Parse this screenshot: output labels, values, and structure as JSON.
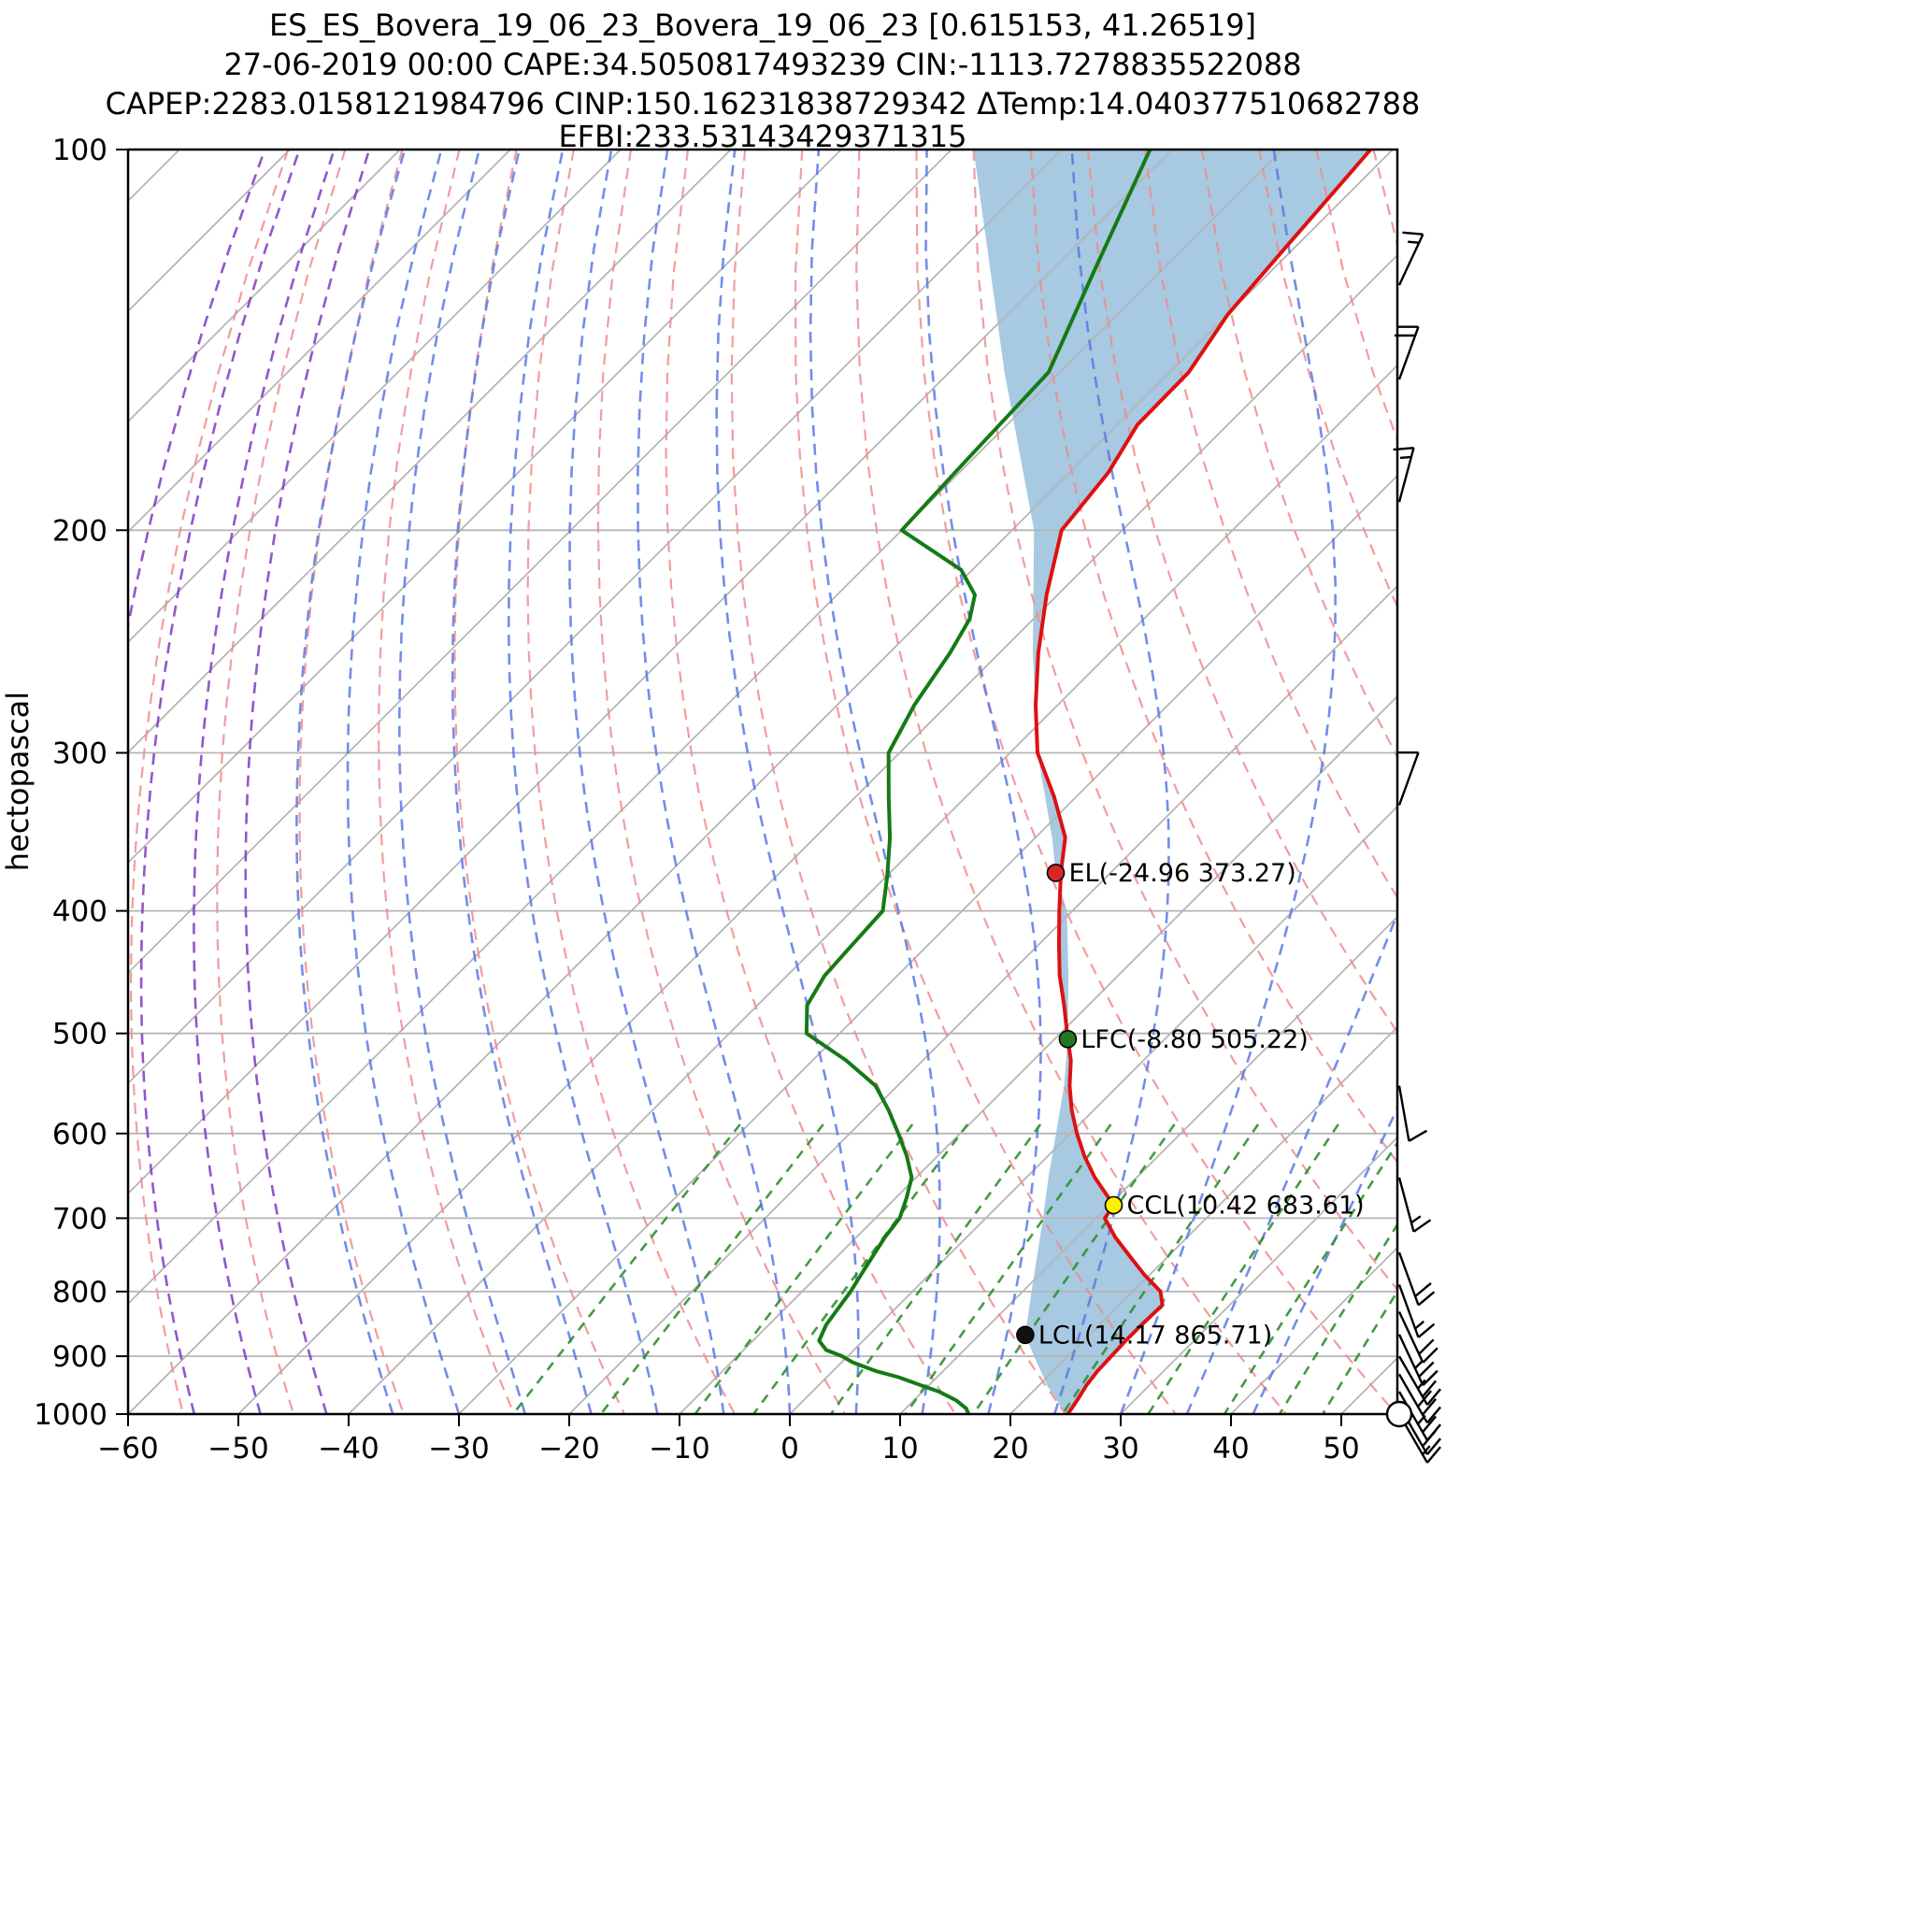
{
  "title": {
    "line1": "ES_ES_Bovera_19_06_23_Bovera_19_06_23 [0.615153, 41.26519]",
    "line2": "27-06-2019 00:00 CAPE:34.5050817493239 CIN:-1113.7278835522088",
    "line3": "CAPEP:2283.0158121984796 CINP:150.16231838729342 ΔTemp:14.040377510682788",
    "line4": "EFBI:233.53143429371315"
  },
  "axes": {
    "y_label": "hectopascal",
    "x_ticks": [
      -60,
      -50,
      -40,
      -30,
      -20,
      -10,
      0,
      10,
      20,
      30,
      40,
      50
    ],
    "y_ticks": [
      100,
      200,
      300,
      400,
      500,
      600,
      700,
      800,
      900,
      1000
    ],
    "x_range_degC": [
      -60,
      55
    ],
    "pressure_range_hpa": [
      100,
      1000
    ],
    "y_scale": "log",
    "skew_deg": 45
  },
  "chart_data": {
    "type": "line",
    "subtype": "skew-t-log-p",
    "grid": true,
    "series": [
      {
        "name": "temperature",
        "color": "#dd1111",
        "points_p_t": [
          [
            1000,
            25.2
          ],
          [
            975,
            24.8
          ],
          [
            950,
            24.3
          ],
          [
            925,
            24.0
          ],
          [
            900,
            23.9
          ],
          [
            875,
            23.8
          ],
          [
            850,
            23.8
          ],
          [
            820,
            23.9
          ],
          [
            800,
            22.5
          ],
          [
            775,
            19.4
          ],
          [
            750,
            16.5
          ],
          [
            725,
            13.5
          ],
          [
            700,
            10.8
          ],
          [
            683.61,
            10.42
          ],
          [
            650,
            6.2
          ],
          [
            625,
            3.3
          ],
          [
            600,
            0.6
          ],
          [
            575,
            -2.0
          ],
          [
            550,
            -4.4
          ],
          [
            525,
            -6.6
          ],
          [
            505.22,
            -8.8
          ],
          [
            475,
            -12.2
          ],
          [
            450,
            -15.3
          ],
          [
            425,
            -18.2
          ],
          [
            400,
            -21.2
          ],
          [
            373.27,
            -24.5
          ],
          [
            350,
            -27.3
          ],
          [
            325,
            -32.0
          ],
          [
            300,
            -37.5
          ],
          [
            275,
            -42.0
          ],
          [
            250,
            -46.5
          ],
          [
            225,
            -51.0
          ],
          [
            200,
            -55.5
          ],
          [
            180,
            -56.5
          ],
          [
            165,
            -58.2
          ],
          [
            150,
            -58.3
          ],
          [
            135,
            -60.0
          ],
          [
            120,
            -60.8
          ],
          [
            100,
            -62.0
          ]
        ]
      },
      {
        "name": "dewpoint",
        "color": "#157a15",
        "points_p_t": [
          [
            1000,
            16.2
          ],
          [
            990,
            15.5
          ],
          [
            975,
            13.8
          ],
          [
            960,
            11.5
          ],
          [
            950,
            9.5
          ],
          [
            935,
            6.5
          ],
          [
            925,
            4.0
          ],
          [
            910,
            1.0
          ],
          [
            900,
            -0.5
          ],
          [
            890,
            -2.5
          ],
          [
            875,
            -4.0
          ],
          [
            850,
            -4.8
          ],
          [
            825,
            -5.2
          ],
          [
            800,
            -5.6
          ],
          [
            775,
            -6.2
          ],
          [
            750,
            -6.8
          ],
          [
            725,
            -7.4
          ],
          [
            700,
            -7.8
          ],
          [
            675,
            -9.0
          ],
          [
            650,
            -10.4
          ],
          [
            625,
            -12.8
          ],
          [
            600,
            -15.6
          ],
          [
            575,
            -18.6
          ],
          [
            550,
            -22.0
          ],
          [
            525,
            -27.0
          ],
          [
            500,
            -33.0
          ],
          [
            475,
            -35.5
          ],
          [
            450,
            -36.6
          ],
          [
            425,
            -36.9
          ],
          [
            400,
            -37.2
          ],
          [
            375,
            -40.0
          ],
          [
            350,
            -43.2
          ],
          [
            325,
            -47.0
          ],
          [
            300,
            -51.0
          ],
          [
            275,
            -53.0
          ],
          [
            250,
            -54.5
          ],
          [
            235,
            -55.8
          ],
          [
            225,
            -57.5
          ],
          [
            215,
            -61.0
          ],
          [
            200,
            -70.0
          ],
          [
            175,
            -70.5
          ],
          [
            150,
            -71.0
          ],
          [
            125,
            -76.0
          ],
          [
            100,
            -82.0
          ]
        ]
      },
      {
        "name": "parcel_path",
        "color": "none",
        "points_p_t": [
          [
            1000,
            25.0
          ],
          [
            950,
            20.8
          ],
          [
            900,
            16.9
          ],
          [
            865.71,
            14.17
          ],
          [
            800,
            10.8
          ],
          [
            750,
            8.1
          ],
          [
            700,
            5.2
          ],
          [
            650,
            2.0
          ],
          [
            600,
            -1.3
          ],
          [
            550,
            -4.9
          ],
          [
            505.22,
            -8.8
          ],
          [
            450,
            -14.5
          ],
          [
            400,
            -20.5
          ],
          [
            373.27,
            -24.96
          ],
          [
            350,
            -28.5
          ],
          [
            300,
            -37.5
          ],
          [
            250,
            -47.0
          ],
          [
            200,
            -58.0
          ],
          [
            150,
            -75.0
          ],
          [
            100,
            -98.0
          ]
        ]
      }
    ],
    "shading": {
      "between": [
        "parcel_path",
        "temperature"
      ],
      "color": "#a2c6e0",
      "opacity": 0.95
    },
    "markers": [
      {
        "name": "el",
        "label": "EL(-24.96 373.27)",
        "t": -24.96,
        "p": 373.27,
        "color": "#d62728"
      },
      {
        "name": "lfc",
        "label": "LFC(-8.80 505.22)",
        "t": -8.8,
        "p": 505.22,
        "color": "#217821"
      },
      {
        "name": "ccl",
        "label": "CCL(10.42 683.61)",
        "t": 10.42,
        "p": 683.61,
        "color": "#ffee00"
      },
      {
        "name": "lcl",
        "label": "LCL(14.17 865.71)",
        "t": 14.17,
        "p": 865.71,
        "color": "#111111"
      }
    ],
    "background_lines": {
      "isobars": {
        "color": "#b5b5b5",
        "width": 1.8
      },
      "isotherms": {
        "start": -170,
        "end": 50,
        "step": 10,
        "color": "#b5b5b5",
        "width": 1.8
      },
      "dry_adiabats": {
        "start": -55,
        "end": 245,
        "step": 10,
        "color": "#ee8c8c",
        "dash": "12 8"
      },
      "moist_adiabats": {
        "start": -60,
        "end": 42,
        "step": 6,
        "color": "#5b79e3",
        "purple_below": -41,
        "purple_color": "#7d3ac1",
        "dash": "12 8"
      },
      "mixing_ratios": {
        "values": [
          0.5,
          1,
          2,
          3,
          5,
          8,
          12,
          20,
          32,
          48,
          64,
          80
        ],
        "p_top": 590,
        "color": "#2f8f2f",
        "dash": "10 8"
      }
    },
    "wind_barbs": [
      {
        "p": 128,
        "spd": 15,
        "dir": 25
      },
      {
        "p": 152,
        "spd": 20,
        "dir": 20
      },
      {
        "p": 190,
        "spd": 15,
        "dir": 15
      },
      {
        "p": 330,
        "spd": 10,
        "dir": 20
      },
      {
        "p": 550,
        "spd": 10,
        "dir": 170
      },
      {
        "p": 650,
        "spd": 15,
        "dir": 165
      },
      {
        "p": 745,
        "spd": 20,
        "dir": 160
      },
      {
        "p": 790,
        "spd": 15,
        "dir": 160
      },
      {
        "p": 830,
        "spd": 20,
        "dir": 155
      },
      {
        "p": 865,
        "spd": 25,
        "dir": 155
      },
      {
        "p": 900,
        "spd": 25,
        "dir": 150
      },
      {
        "p": 930,
        "spd": 30,
        "dir": 150
      },
      {
        "p": 960,
        "spd": 25,
        "dir": 150
      },
      {
        "p": 985,
        "spd": 20,
        "dir": 150
      },
      {
        "p": 1000,
        "spd": 15,
        "dir": 150
      }
    ],
    "station_circle": {
      "p": 1000
    }
  }
}
